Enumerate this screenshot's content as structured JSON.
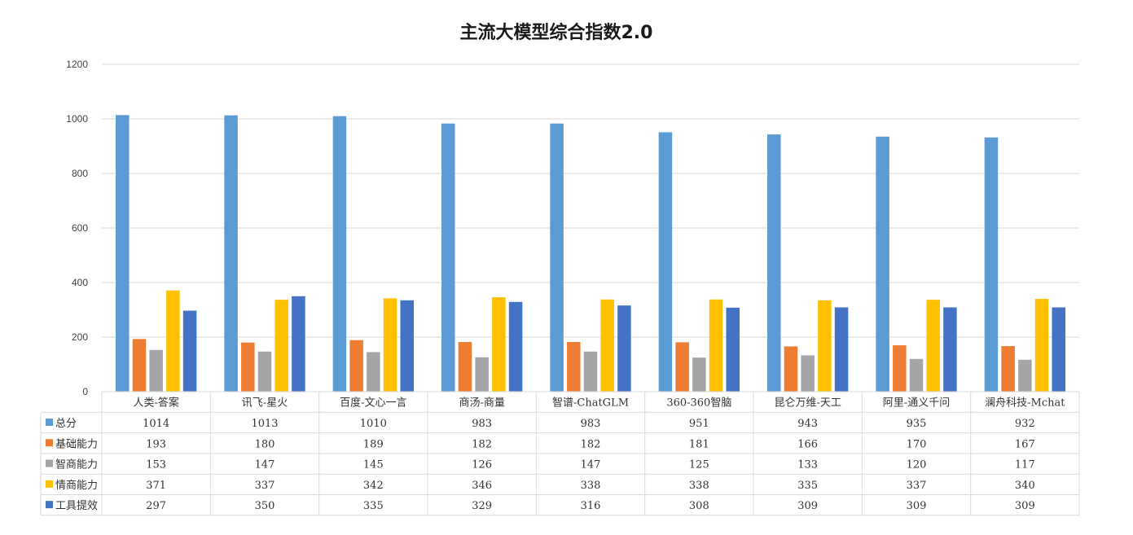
{
  "chart_data": {
    "type": "bar",
    "title": "主流大模型综合指数2.0",
    "xlabel": "",
    "ylabel": "",
    "ylim": [
      0,
      1200
    ],
    "yticks": [
      0,
      200,
      400,
      600,
      800,
      1000,
      1200
    ],
    "grid": true,
    "legend": "data-table",
    "categories": [
      "人类-答案",
      "讯飞-星火",
      "百度-文心一言",
      "商汤-商量",
      "智谱-ChatGLM",
      "360-360智脑",
      "昆仑万维-天工",
      "阿里-通义千问",
      "澜舟科技-Mchat"
    ],
    "series": [
      {
        "name": "总分",
        "color": "#5B9BD5",
        "values": [
          1014,
          1013,
          1010,
          983,
          983,
          951,
          943,
          935,
          932
        ]
      },
      {
        "name": "基础能力",
        "color": "#ED7D31",
        "values": [
          193,
          180,
          189,
          182,
          182,
          181,
          166,
          170,
          167
        ]
      },
      {
        "name": "智商能力",
        "color": "#A5A5A5",
        "values": [
          153,
          147,
          145,
          126,
          147,
          125,
          133,
          120,
          117
        ]
      },
      {
        "name": "情商能力",
        "color": "#FFC000",
        "values": [
          371,
          337,
          342,
          346,
          338,
          338,
          335,
          337,
          340
        ]
      },
      {
        "name": "工具提效",
        "color": "#4472C4",
        "values": [
          297,
          350,
          335,
          329,
          316,
          308,
          309,
          309,
          309
        ]
      }
    ]
  }
}
